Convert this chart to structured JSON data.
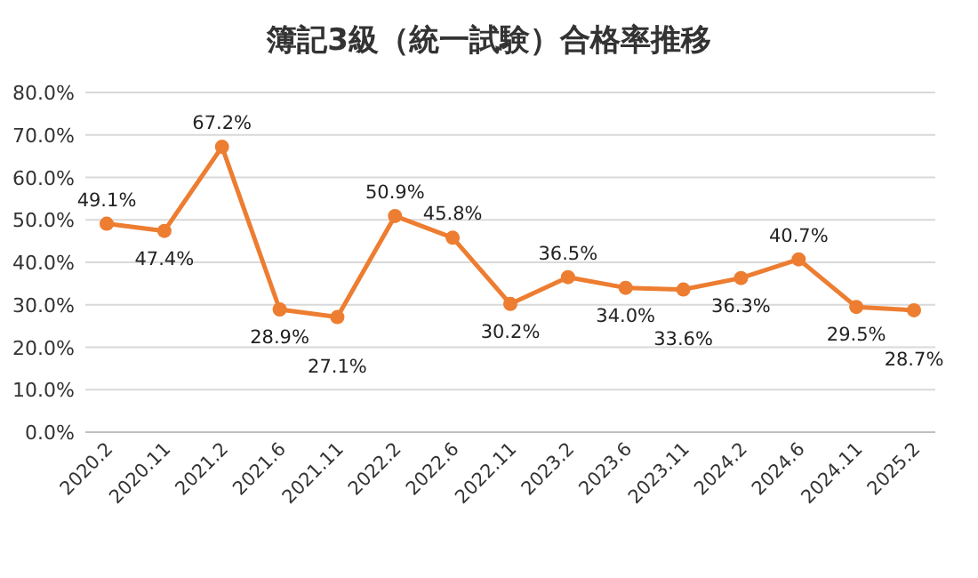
{
  "chart_data": {
    "type": "line",
    "title": "簿記3級（統一試験）合格率推移",
    "categories": [
      "2020.2",
      "2020.11",
      "2021.2",
      "2021.6",
      "2021.11",
      "2022.2",
      "2022.6",
      "2022.11",
      "2023.2",
      "2023.6",
      "2023.11",
      "2024.2",
      "2024.6",
      "2024.11",
      "2025.2"
    ],
    "series": [
      {
        "color": "#ed7d31",
        "values": [
          49.1,
          47.4,
          67.2,
          28.9,
          27.1,
          50.9,
          45.8,
          30.2,
          36.5,
          34.0,
          33.6,
          36.3,
          40.7,
          29.5,
          28.7
        ],
        "value_labels": [
          "49.1%",
          "47.4%",
          "67.2%",
          "28.9%",
          "27.1%",
          "50.9%",
          "45.8%",
          "30.2%",
          "36.5%",
          "34.0%",
          "33.6%",
          "36.3%",
          "40.7%",
          "29.5%",
          "28.7%"
        ]
      }
    ],
    "ylim": [
      0,
      80
    ],
    "yticks": [
      {
        "value": 0,
        "label": "0.0%"
      },
      {
        "value": 10,
        "label": "10.0%"
      },
      {
        "value": 20,
        "label": "20.0%"
      },
      {
        "value": 30,
        "label": "30.0%"
      },
      {
        "value": 40,
        "label": "40.0%"
      },
      {
        "value": 50,
        "label": "50.0%"
      },
      {
        "value": 60,
        "label": "60.0%"
      },
      {
        "value": 70,
        "label": "70.0%"
      },
      {
        "value": 80,
        "label": "80.0%"
      }
    ],
    "grid": "y",
    "marker": "circle",
    "line_style": "solid"
  }
}
